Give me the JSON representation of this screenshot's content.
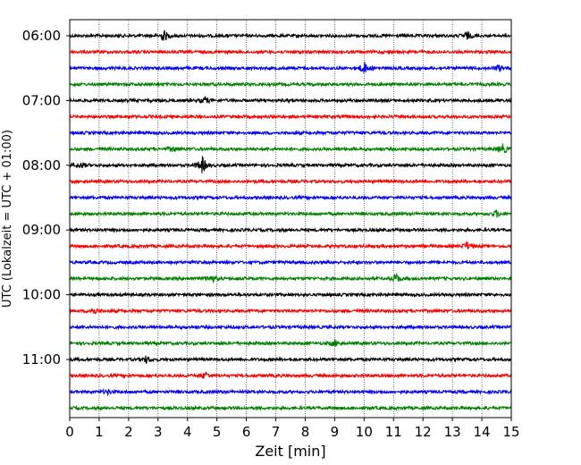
{
  "chart_data": {
    "type": "line",
    "title": "",
    "xlabel": "Zeit  [min]",
    "ylabel": "UTC (Lokalzeit = UTC + 01:00)",
    "xlim": [
      0,
      15
    ],
    "x_ticks": [
      0,
      1,
      2,
      3,
      4,
      5,
      6,
      7,
      8,
      9,
      10,
      11,
      12,
      13,
      14,
      15
    ],
    "x_grid": true,
    "y_tick_labels": [
      "06:00",
      "07:00",
      "08:00",
      "09:00",
      "10:00",
      "11:00"
    ],
    "y_tick_rows": [
      0,
      4,
      8,
      12,
      16,
      20
    ],
    "row_interval_minutes": 15,
    "row_start": "06:00",
    "row_count": 24,
    "colors": [
      "#000000",
      "#ff0000",
      "#0000ff",
      "#008000"
    ],
    "events": [
      {
        "row": 0,
        "x": 3.2,
        "amp": 1.0
      },
      {
        "row": 0,
        "x": 13.5,
        "amp": 0.7
      },
      {
        "row": 2,
        "x": 10.0,
        "amp": 1.1
      },
      {
        "row": 2,
        "x": 14.6,
        "amp": 0.5
      },
      {
        "row": 4,
        "x": 4.6,
        "amp": 0.6
      },
      {
        "row": 7,
        "x": 14.7,
        "amp": 0.9
      },
      {
        "row": 7,
        "x": 3.5,
        "amp": 0.5
      },
      {
        "row": 8,
        "x": 4.5,
        "amp": 1.5
      },
      {
        "row": 8,
        "x": 0.4,
        "amp": 0.5
      },
      {
        "row": 11,
        "x": 14.5,
        "amp": 0.6
      },
      {
        "row": 13,
        "x": 13.5,
        "amp": 0.7
      },
      {
        "row": 15,
        "x": 4.8,
        "amp": 0.8
      },
      {
        "row": 15,
        "x": 11.1,
        "amp": 0.8
      },
      {
        "row": 17,
        "x": 0.8,
        "amp": 0.6
      },
      {
        "row": 19,
        "x": 9.0,
        "amp": 0.6
      },
      {
        "row": 20,
        "x": 2.6,
        "amp": 0.6
      },
      {
        "row": 21,
        "x": 4.6,
        "amp": 0.6
      },
      {
        "row": 22,
        "x": 1.3,
        "amp": 0.4
      }
    ]
  }
}
